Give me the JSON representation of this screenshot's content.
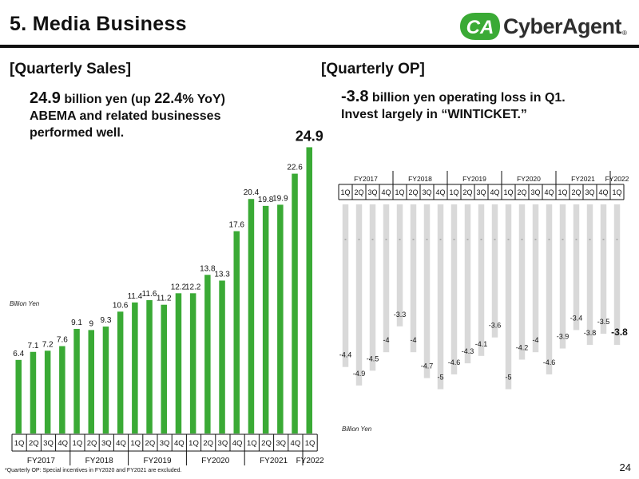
{
  "header": {
    "title": "5. Media Business",
    "logo_text": "CyberAgent",
    "logo_mark": "CA",
    "logo_reg": "®",
    "brand_color": "#3aaa35"
  },
  "sales": {
    "section_title": "[Quarterly Sales]",
    "summary": {
      "big": "24.9",
      "line1_rest": " billion yen (up ",
      "pct": "22.4",
      "line1_tail": "% YoY)",
      "line2": "ABEMA and related businesses",
      "line3": "performed well."
    }
  },
  "op": {
    "section_title": "[Quarterly OP]",
    "summary": {
      "big": "-3.8",
      "line1_rest": " billion yen operating loss in Q1.",
      "line2": "Invest largely in “WINTICKET.”"
    }
  },
  "footnote": "*Quarterly OP: Special incentives in FY2020 and FY2021 are excluded.",
  "page_number": "24",
  "chart_data": [
    {
      "type": "bar",
      "title": "[Quarterly Sales]",
      "ylabel": "Billion Yen",
      "color": "#3aaa35",
      "quarters": [
        "1Q",
        "2Q",
        "3Q",
        "4Q",
        "1Q",
        "2Q",
        "3Q",
        "4Q",
        "1Q",
        "2Q",
        "3Q",
        "4Q",
        "1Q",
        "2Q",
        "3Q",
        "4Q",
        "1Q",
        "2Q",
        "3Q",
        "4Q",
        "1Q"
      ],
      "fiscal_years": [
        {
          "label": "FY2017",
          "quarters": 4
        },
        {
          "label": "FY2018",
          "quarters": 4
        },
        {
          "label": "FY2019",
          "quarters": 4
        },
        {
          "label": "FY2020",
          "quarters": 4
        },
        {
          "label": "FY2021",
          "quarters": 4
        },
        {
          "label": "FY2022",
          "quarters": 1
        }
      ],
      "values": [
        6.4,
        7.1,
        7.2,
        7.6,
        9.1,
        9.0,
        9.3,
        10.6,
        11.4,
        11.6,
        11.2,
        12.2,
        12.2,
        13.8,
        13.3,
        17.6,
        20.4,
        19.8,
        19.9,
        22.6,
        24.9
      ],
      "highlight_last": true
    },
    {
      "type": "bar",
      "title": "[Quarterly OP]",
      "ylabel": "Billion Yen",
      "color": "#d9d9d9",
      "quarters": [
        "1Q",
        "2Q",
        "3Q",
        "4Q",
        "1Q",
        "2Q",
        "3Q",
        "4Q",
        "1Q",
        "2Q",
        "3Q",
        "4Q",
        "1Q",
        "2Q",
        "3Q",
        "4Q",
        "1Q",
        "2Q",
        "3Q",
        "4Q",
        "1Q"
      ],
      "fiscal_years": [
        {
          "label": "FY2017",
          "quarters": 4
        },
        {
          "label": "FY2018",
          "quarters": 4
        },
        {
          "label": "FY2019",
          "quarters": 4
        },
        {
          "label": "FY2020",
          "quarters": 4
        },
        {
          "label": "FY2021",
          "quarters": 4
        },
        {
          "label": "FY2022",
          "quarters": 1
        }
      ],
      "values": [
        -4.4,
        -4.9,
        -4.5,
        -4.0,
        -3.3,
        -4.0,
        -4.7,
        -5.0,
        -4.6,
        -4.3,
        -4.1,
        -3.6,
        -5.0,
        -4.2,
        -4.0,
        -4.6,
        -3.9,
        -3.4,
        -3.8,
        -3.5,
        -3.8
      ],
      "highlight_last": true
    }
  ]
}
